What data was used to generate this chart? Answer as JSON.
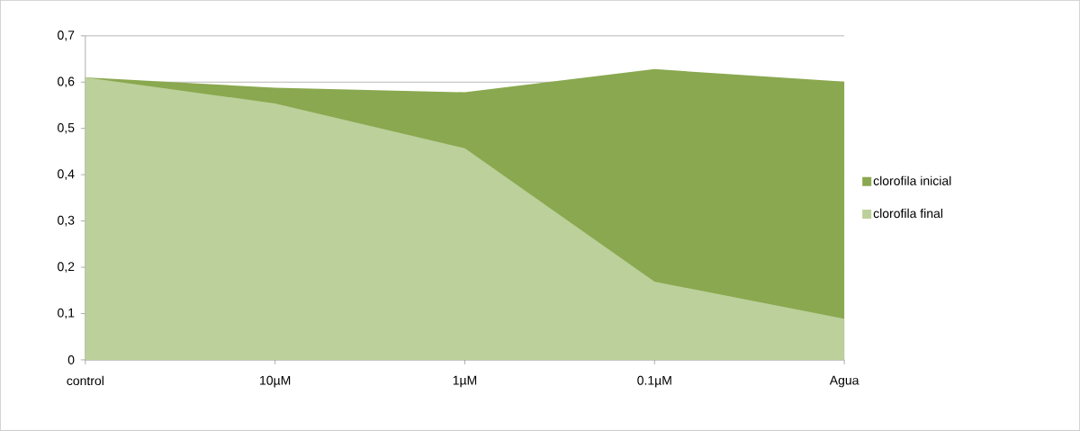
{
  "chart_data": {
    "type": "area",
    "categories": [
      "control",
      "10µM",
      "1µM",
      "0.1µM",
      "Agua"
    ],
    "series": [
      {
        "name": "clorofila inicial",
        "color": "#8aa84f",
        "values": [
          0.61,
          0.588,
          0.578,
          0.628,
          0.601
        ]
      },
      {
        "name": "clorofila final",
        "color": "#bbd09a",
        "values": [
          0.61,
          0.554,
          0.457,
          0.169,
          0.089
        ]
      }
    ],
    "ylim": [
      0,
      0.7
    ],
    "yticks": [
      {
        "value": 0,
        "label": "0"
      },
      {
        "value": 0.1,
        "label": "0,1"
      },
      {
        "value": 0.2,
        "label": "0,2"
      },
      {
        "value": 0.3,
        "label": "0,3"
      },
      {
        "value": 0.4,
        "label": "0,4"
      },
      {
        "value": 0.5,
        "label": "0,5"
      },
      {
        "value": 0.6,
        "label": "0,6"
      },
      {
        "value": 0.7,
        "label": "0,7"
      }
    ],
    "grid": "y",
    "legend": "right"
  }
}
